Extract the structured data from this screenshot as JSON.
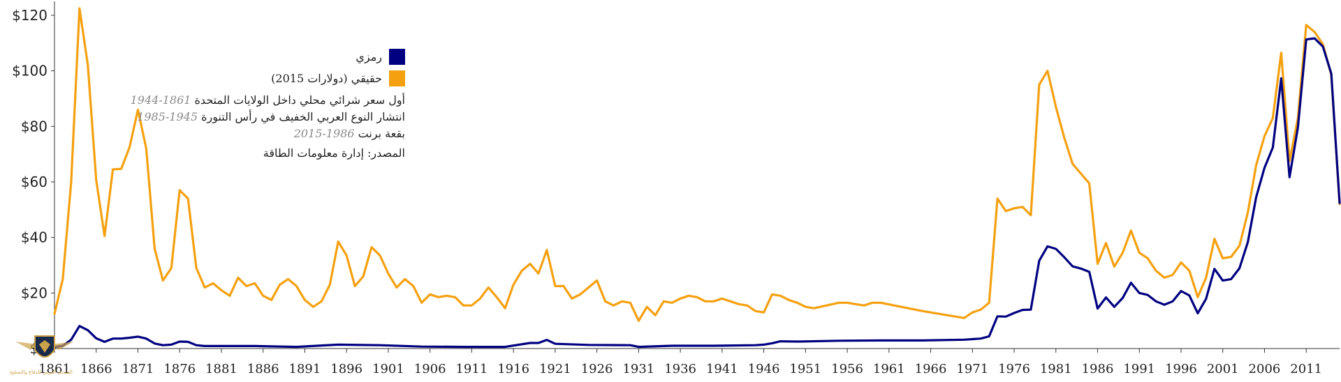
{
  "chart_data": {
    "type": "line",
    "yticks": [
      "$0",
      "$20",
      "$40",
      "$60",
      "$80",
      "$100",
      "$120"
    ],
    "ylim": [
      0,
      125
    ],
    "xlim": [
      1861,
      2015
    ],
    "xticks": [
      "1861",
      "1866",
      "1871",
      "1876",
      "1881",
      "1886",
      "1891",
      "1896",
      "1901",
      "1906",
      "1911",
      "1916",
      "1921",
      "1926",
      "1931",
      "1936",
      "1941",
      "1946",
      "1951",
      "1956",
      "1961",
      "1966",
      "1971",
      "1976",
      "1981",
      "1986",
      "1991",
      "1996",
      "2001",
      "2006",
      "2011"
    ],
    "grid": false,
    "legend_position": "top-left",
    "series": [
      {
        "name": "رمزي",
        "color": "#000080",
        "x": [
          1861,
          1862,
          1863,
          1864,
          1865,
          1866,
          1867,
          1868,
          1869,
          1870,
          1871,
          1872,
          1873,
          1874,
          1875,
          1876,
          1877,
          1878,
          1879,
          1880,
          1885,
          1890,
          1895,
          1900,
          1905,
          1910,
          1915,
          1918,
          1919,
          1920,
          1921,
          1925,
          1930,
          1931,
          1935,
          1940,
          1945,
          1946,
          1947,
          1948,
          1950,
          1955,
          1960,
          1965,
          1970,
          1971,
          1972,
          1973,
          1974,
          1975,
          1976,
          1977,
          1978,
          1979,
          1980,
          1981,
          1982,
          1983,
          1984,
          1985,
          1986,
          1987,
          1988,
          1989,
          1990,
          1991,
          1992,
          1993,
          1994,
          1995,
          1996,
          1997,
          1998,
          1999,
          2000,
          2001,
          2002,
          2003,
          2004,
          2005,
          2006,
          2007,
          2008,
          2009,
          2010,
          2011,
          2012,
          2013,
          2014,
          2015
        ],
        "values": [
          0.5,
          1.0,
          3.2,
          8.1,
          6.6,
          3.7,
          2.4,
          3.6,
          3.6,
          3.9,
          4.3,
          3.6,
          1.8,
          1.2,
          1.4,
          2.5,
          2.4,
          1.2,
          0.9,
          0.9,
          0.9,
          0.6,
          1.4,
          1.2,
          0.7,
          0.6,
          0.6,
          2.0,
          2.0,
          3.1,
          1.7,
          1.3,
          1.2,
          0.6,
          1.0,
          1.0,
          1.2,
          1.4,
          1.9,
          2.6,
          2.5,
          2.8,
          2.9,
          2.9,
          3.2,
          3.4,
          3.6,
          4.4,
          11.6,
          11.5,
          12.8,
          13.9,
          14.0,
          31.6,
          36.8,
          35.9,
          32.9,
          29.6,
          28.8,
          27.6,
          14.4,
          18.4,
          15.0,
          18.2,
          23.7,
          20.0,
          19.3,
          17.0,
          15.8,
          17.0,
          20.7,
          19.1,
          12.7,
          17.9,
          28.7,
          24.5,
          25.0,
          28.9,
          38.3,
          54.5,
          65.1,
          72.4,
          97.3,
          61.7,
          79.6,
          111.3,
          111.7,
          108.7,
          99.0,
          52.4
        ]
      },
      {
        "name": "حقيقي (دولارات 2015)",
        "color": "#f5a00f",
        "x": [
          1861,
          1862,
          1863,
          1864,
          1865,
          1866,
          1867,
          1868,
          1869,
          1870,
          1871,
          1872,
          1873,
          1874,
          1875,
          1876,
          1877,
          1878,
          1879,
          1880,
          1881,
          1882,
          1883,
          1884,
          1885,
          1886,
          1887,
          1888,
          1889,
          1890,
          1891,
          1892,
          1893,
          1894,
          1895,
          1896,
          1897,
          1898,
          1899,
          1900,
          1901,
          1902,
          1903,
          1904,
          1905,
          1906,
          1907,
          1908,
          1909,
          1910,
          1911,
          1912,
          1913,
          1914,
          1915,
          1916,
          1917,
          1918,
          1919,
          1920,
          1921,
          1922,
          1923,
          1924,
          1925,
          1926,
          1927,
          1928,
          1929,
          1930,
          1931,
          1932,
          1933,
          1934,
          1935,
          1936,
          1937,
          1938,
          1939,
          1940,
          1941,
          1942,
          1943,
          1944,
          1945,
          1946,
          1947,
          1948,
          1949,
          1950,
          1951,
          1952,
          1955,
          1956,
          1957,
          1958,
          1959,
          1960,
          1965,
          1970,
          1971,
          1972,
          1973,
          1974,
          1975,
          1976,
          1977,
          1978,
          1979,
          1980,
          1981,
          1982,
          1983,
          1984,
          1985,
          1986,
          1987,
          1988,
          1989,
          1990,
          1991,
          1992,
          1993,
          1994,
          1995,
          1996,
          1997,
          1998,
          1999,
          2000,
          2001,
          2002,
          2003,
          2004,
          2005,
          2006,
          2007,
          2008,
          2009,
          2010,
          2011,
          2012,
          2013,
          2014,
          2015
        ],
        "values": [
          12.5,
          25,
          60,
          122.5,
          102,
          60.8,
          40.5,
          64.5,
          64.7,
          72.5,
          86,
          72,
          36,
          24.5,
          29,
          57,
          54,
          29,
          22,
          23.5,
          21,
          19,
          25.5,
          22.5,
          23.5,
          19,
          17.5,
          23,
          25,
          22.5,
          17.5,
          15,
          17,
          23,
          38.5,
          33.5,
          22.5,
          26,
          36.5,
          33.5,
          27,
          22,
          25,
          22.5,
          16.5,
          19.5,
          18.5,
          19,
          18.5,
          15.5,
          15.5,
          18,
          22,
          18.5,
          14.5,
          23,
          28,
          30.5,
          27,
          35.5,
          22.5,
          22.5,
          18,
          19.5,
          22,
          24.5,
          17,
          15.5,
          17,
          16.5,
          10,
          15,
          12,
          17,
          16.5,
          18,
          19,
          18.5,
          17,
          17,
          18,
          17,
          16,
          15.5,
          13.5,
          13,
          19.5,
          19,
          17.5,
          16.5,
          15,
          14.5,
          16.5,
          16.5,
          16,
          15.5,
          16.5,
          16.5,
          13.5,
          11,
          13,
          14,
          16.5,
          54,
          49.5,
          50.5,
          51,
          48,
          95,
          100,
          87,
          76,
          66.5,
          63,
          59.5,
          30.5,
          38,
          29.5,
          34.5,
          42.5,
          34.5,
          32.5,
          28,
          25.5,
          26.5,
          31,
          28,
          18.5,
          25.5,
          39.5,
          32.5,
          33,
          37,
          49,
          66,
          76.5,
          83,
          106.5,
          67.5,
          83,
          116.5,
          114,
          109.5,
          98.5,
          52
        ]
      }
    ]
  },
  "legend": {
    "nominal": "رمزي",
    "real": "حقيقي (دولارات 2015)",
    "notes": [
      {
        "years": "1861-1944",
        "text": "أول سعر شرائي محلي داخل الولايات المتحدة"
      },
      {
        "years": "1945-1985",
        "text": "انتشار النوع العربي الخفيف في رأس التنورة"
      },
      {
        "years": "1986-2015",
        "text": "بقعة برنت"
      }
    ],
    "source": "المصدر: إدارة معلومات الطاقة"
  },
  "logo": {
    "text": "المنتدى العربي للدفاع والتسليح",
    "icon": "eagle-shield-icon"
  }
}
